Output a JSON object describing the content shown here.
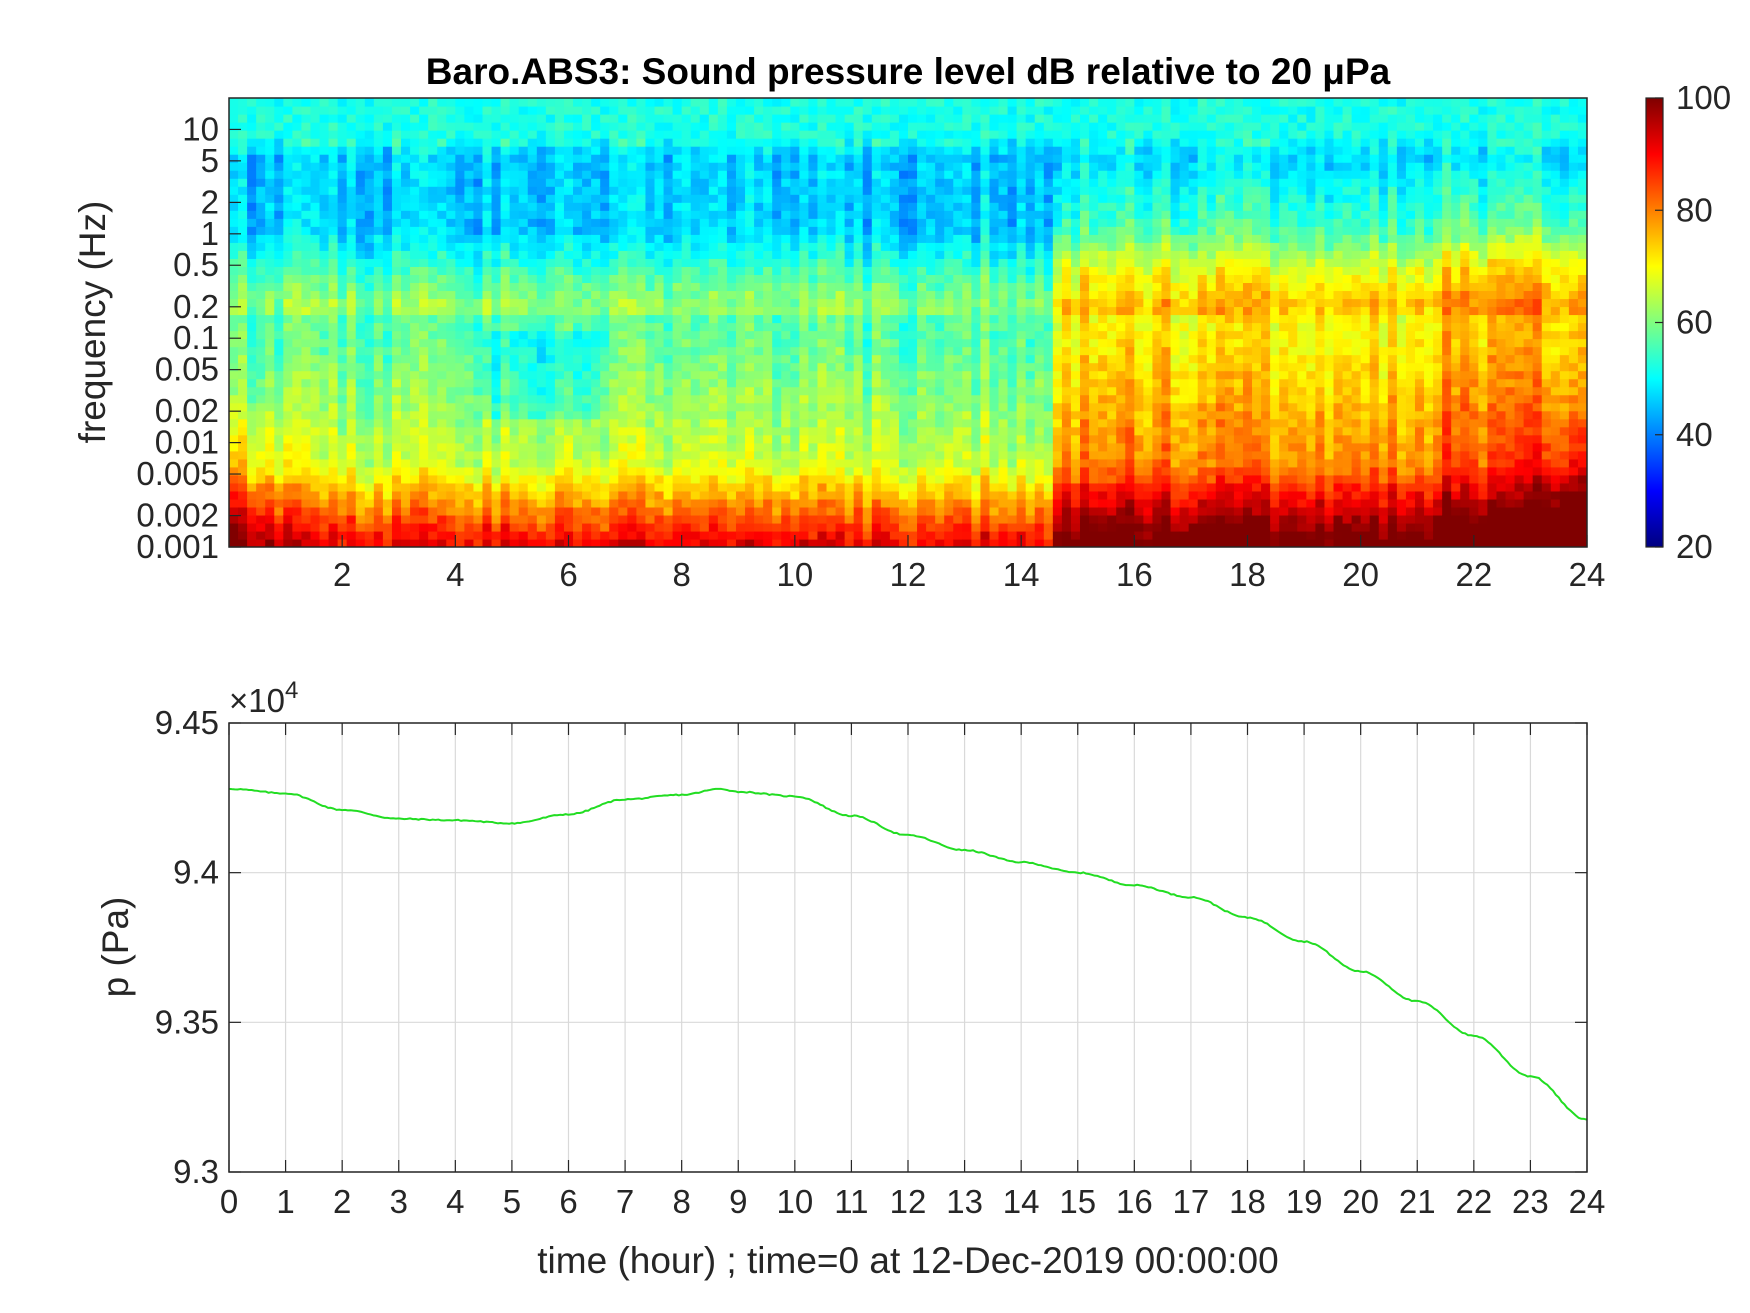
{
  "chart_data": [
    {
      "type": "heatmap",
      "title": "Baro.ABS3: Sound pressure level dB relative to 20 μPa",
      "xlabel": "",
      "ylabel": "frequency (Hz)",
      "xlim": [
        0,
        24
      ],
      "ylim": [
        0.001,
        20
      ],
      "yscale": "log",
      "x_ticks": [
        "2",
        "4",
        "6",
        "8",
        "10",
        "12",
        "14",
        "16",
        "18",
        "20",
        "22",
        "24"
      ],
      "y_ticks": [
        "0.001",
        "0.002",
        "0.005",
        "0.01",
        "0.02",
        "0.05",
        "0.1",
        "0.2",
        "0.5",
        "1",
        "2",
        "5",
        "10"
      ],
      "colormap": "jet",
      "colorbar": {
        "range": [
          20,
          100
        ],
        "ticks": [
          "20",
          "40",
          "60",
          "80",
          "100"
        ]
      },
      "value_bands_db": [
        {
          "freq_hz": [
            10,
            20
          ],
          "level_db": 52
        },
        {
          "freq_hz": [
            1,
            5
          ],
          "level_db": 46
        },
        {
          "freq_hz": [
            0.2,
            1
          ],
          "level_db": 60
        },
        {
          "freq_hz": [
            0.01,
            0.1
          ],
          "level_db": 62
        },
        {
          "freq_hz": [
            0.001,
            0.005
          ],
          "level_db": 90
        }
      ],
      "grid": false
    },
    {
      "type": "line",
      "title": "",
      "xlabel": "time (hour) ; time=0 at 12-Dec-2019 00:00:00",
      "ylabel": "p (Pa)",
      "exponent_label": "×10",
      "exponent_power": "4",
      "xlim": [
        0,
        24
      ],
      "ylim": [
        9.3,
        9.45
      ],
      "x_ticks": [
        "0",
        "1",
        "2",
        "3",
        "4",
        "5",
        "6",
        "7",
        "8",
        "9",
        "10",
        "11",
        "12",
        "13",
        "14",
        "15",
        "16",
        "17",
        "18",
        "19",
        "20",
        "21",
        "22",
        "23",
        "24"
      ],
      "y_ticks": [
        "9.3",
        "9.35",
        "9.4",
        "9.45"
      ],
      "grid": true,
      "line_color": "#22dd22",
      "x": [
        0,
        1,
        2,
        3,
        4,
        5,
        6,
        7,
        8,
        8.7,
        9,
        10,
        11,
        12,
        13,
        14,
        15,
        16,
        17,
        18,
        19,
        20,
        21,
        22,
        23,
        24
      ],
      "y": [
        9.428,
        9.4265,
        9.421,
        9.418,
        9.4175,
        9.4165,
        9.4195,
        9.4245,
        9.426,
        9.428,
        9.427,
        9.4255,
        9.419,
        9.4125,
        9.4075,
        9.4035,
        9.4,
        9.3958,
        9.3918,
        9.385,
        9.377,
        9.367,
        9.357,
        9.3455,
        9.332,
        9.3175
      ]
    }
  ]
}
